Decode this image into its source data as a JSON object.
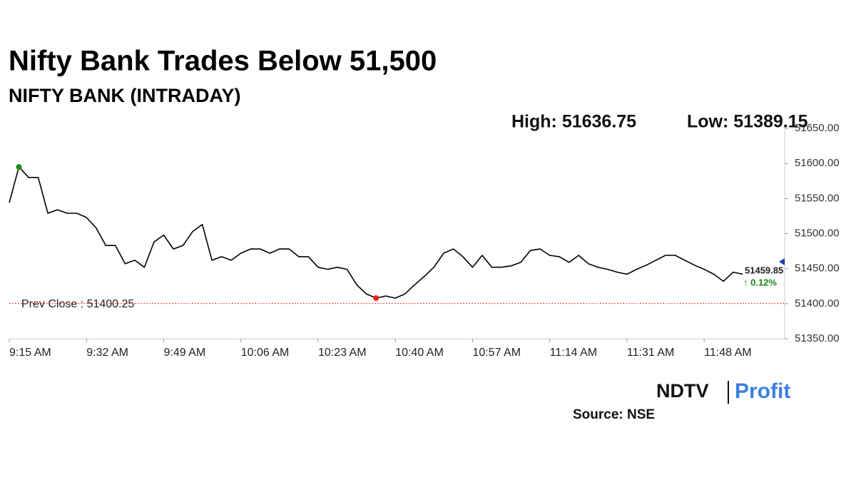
{
  "chart_data": {
    "type": "line",
    "title": "Nifty Bank Trades Below 51,500",
    "subtitle": "NIFTY BANK (INTRADAY)",
    "high_text": "High: 51636.75",
    "low_text": "Low: 51389.15",
    "prev_close_label": "Prev Close : 51400.25",
    "prev_close": 51400.25,
    "last_value": 51459.85,
    "last_value_label": "51459.85",
    "change_label": "↑ 0.12%",
    "source": "Source: NSE",
    "logo": [
      "NDTV",
      "Profit"
    ],
    "categories": [
      "9:15 AM",
      null,
      null,
      null,
      null,
      null,
      null,
      null,
      "9:32 AM",
      null,
      null,
      null,
      null,
      null,
      null,
      null,
      "9:49 AM",
      null,
      null,
      null,
      null,
      null,
      null,
      null,
      "10:06 AM",
      null,
      null,
      null,
      null,
      null,
      null,
      null,
      "10:23 AM",
      null,
      null,
      null,
      null,
      null,
      null,
      null,
      "10:40 AM",
      null,
      null,
      null,
      null,
      null,
      null,
      null,
      "10:57 AM",
      null,
      null,
      null,
      null,
      null,
      null,
      null,
      "11:14 AM",
      null,
      null,
      null,
      null,
      null,
      null,
      null,
      "11:31 AM",
      null,
      null,
      null,
      null,
      null,
      null,
      null,
      "11:48 AM",
      null,
      null,
      null,
      null
    ],
    "series": [
      {
        "name": "NIFTY BANK",
        "color": "#000000",
        "values": [
          51544,
          51595,
          51580,
          51580,
          51529,
          51534,
          51529,
          51529,
          51523,
          51508,
          51483,
          51483,
          51457,
          51462,
          51452,
          51488,
          51498,
          51478,
          51483,
          51503,
          51513,
          51462,
          51467,
          51462,
          51472,
          51478,
          51478,
          51472,
          51478,
          51478,
          51467,
          51467,
          51452,
          51449,
          51452,
          51449,
          51427,
          51414,
          51408,
          51411,
          51408,
          51414,
          51427,
          51439,
          51452,
          51472,
          51478,
          51467,
          51452,
          51469,
          51452,
          51452,
          51454,
          51459,
          51476,
          51478,
          51469,
          51467,
          51459,
          51469,
          51457,
          51452,
          51449,
          51445,
          51442,
          51449,
          51455,
          51462,
          51469,
          51469,
          51462,
          51455,
          51449,
          51442,
          51432,
          51445,
          51442
        ]
      }
    ],
    "ylim": [
      51350,
      51650
    ],
    "yticks": [
      {
        "value": 51350,
        "label": "51350.00"
      },
      {
        "value": 51400,
        "label": "51400.00"
      },
      {
        "value": 51450,
        "label": "51450.00"
      },
      {
        "value": 51500,
        "label": "51500.00"
      },
      {
        "value": 51550,
        "label": "51550.00"
      },
      {
        "value": 51600,
        "label": "51600.00"
      },
      {
        "value": 51650,
        "label": "51650.00"
      }
    ],
    "grid": false
  }
}
